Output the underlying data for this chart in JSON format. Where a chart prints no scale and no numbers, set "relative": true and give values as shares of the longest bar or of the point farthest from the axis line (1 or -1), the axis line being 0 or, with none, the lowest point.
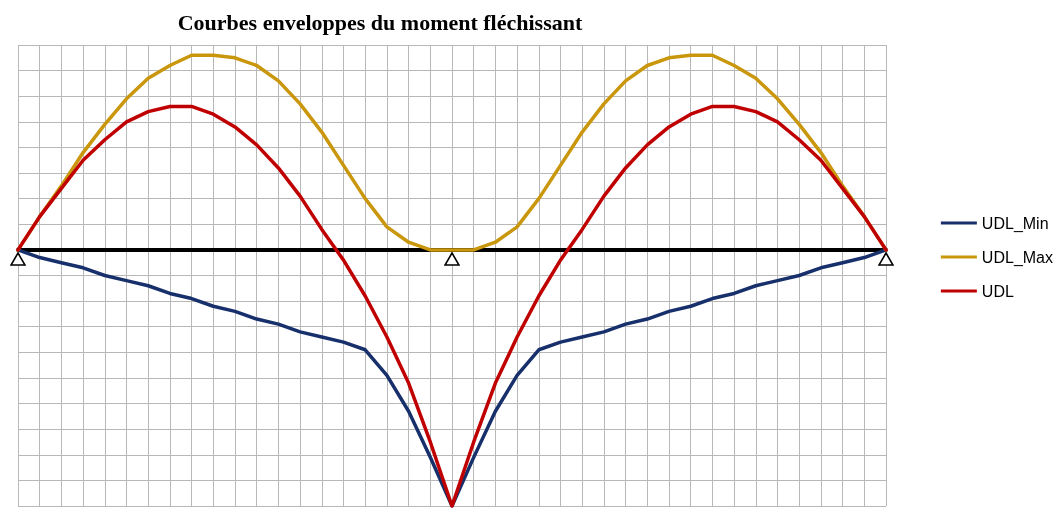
{
  "chart_data": {
    "type": "line",
    "title": "Courbes enveloppes du moment fléchissant",
    "relative": true,
    "grid": true,
    "legend": "right",
    "marker": "none",
    "line_style": "solid",
    "categories": [
      null,
      null,
      null,
      null,
      null,
      null,
      null,
      null,
      null,
      null,
      null,
      null,
      null,
      null,
      null,
      null,
      null,
      null,
      null,
      null,
      null,
      null,
      null,
      null,
      null,
      null,
      null,
      null,
      null,
      null,
      null,
      null,
      null,
      null,
      null,
      null,
      null,
      null,
      null,
      null,
      null
    ],
    "series": [
      {
        "name": "UDL_Min",
        "color": "#17306b",
        "values": [
          0,
          -0.03,
          -0.05,
          -0.07,
          -0.1,
          -0.12,
          -0.14,
          -0.17,
          -0.19,
          -0.22,
          -0.24,
          -0.27,
          -0.29,
          -0.32,
          -0.34,
          -0.36,
          -0.39,
          -0.49,
          -0.63,
          -0.81,
          -1,
          -0.81,
          -0.63,
          -0.49,
          -0.39,
          -0.36,
          -0.34,
          -0.32,
          -0.29,
          -0.27,
          -0.24,
          -0.22,
          -0.19,
          -0.17,
          -0.14,
          -0.12,
          -0.1,
          -0.07,
          -0.05,
          -0.03,
          0
        ]
      },
      {
        "name": "UDL_Max",
        "color": "#c9960c",
        "values": [
          0,
          0.13,
          0.25,
          0.38,
          0.49,
          0.59,
          0.67,
          0.72,
          0.76,
          0.76,
          0.75,
          0.72,
          0.66,
          0.57,
          0.46,
          0.33,
          0.2,
          0.09,
          0.03,
          0.0,
          0,
          0.0,
          0.03,
          0.09,
          0.2,
          0.33,
          0.46,
          0.57,
          0.66,
          0.72,
          0.75,
          0.76,
          0.76,
          0.72,
          0.67,
          0.59,
          0.49,
          0.38,
          0.25,
          0.13,
          0
        ]
      },
      {
        "name": "UDL",
        "color": "#c00000",
        "values": [
          0,
          0.13,
          0.24,
          0.35,
          0.43,
          0.5,
          0.54,
          0.56,
          0.56,
          0.53,
          0.48,
          0.41,
          0.32,
          0.21,
          0.08,
          -0.04,
          -0.18,
          -0.34,
          -0.52,
          -0.75,
          -1,
          -0.75,
          -0.52,
          -0.34,
          -0.18,
          -0.04,
          0.08,
          0.21,
          0.32,
          0.41,
          0.48,
          0.53,
          0.56,
          0.56,
          0.54,
          0.5,
          0.43,
          0.35,
          0.24,
          0.13,
          0
        ]
      }
    ]
  }
}
